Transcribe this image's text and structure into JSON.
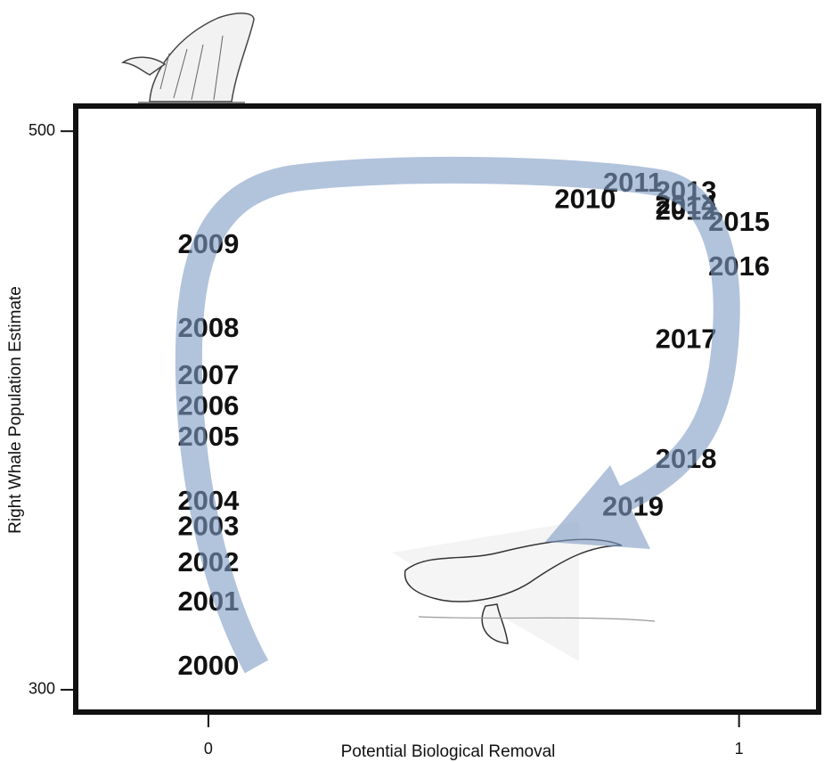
{
  "chart_data": {
    "type": "scatter",
    "x_label": "Potential Biological Removal",
    "y_label": "Right Whale Population Estimate",
    "labels": [
      "2000",
      "2001",
      "2002",
      "2003",
      "2004",
      "2005",
      "2006",
      "2007",
      "2008",
      "2009",
      "2010",
      "2011",
      "2012",
      "2013",
      "2014",
      "2015",
      "2016",
      "2017",
      "2018",
      "2019"
    ],
    "x": [
      0.0,
      0.0,
      0.0,
      0.0,
      0.0,
      0.0,
      0.0,
      0.0,
      0.0,
      0.0,
      0.71,
      0.8,
      0.9,
      0.9,
      0.9,
      1.0,
      1.0,
      0.9,
      0.9,
      0.8
    ],
    "y": [
      308,
      331,
      345,
      358,
      367,
      390,
      401,
      412,
      429,
      459,
      475,
      481,
      471,
      478,
      473,
      467,
      451,
      425,
      382,
      365
    ],
    "xlim": [
      -0.25,
      1.15
    ],
    "ylim": [
      292,
      509
    ],
    "xticks": [
      0,
      1
    ],
    "yticks": [
      300,
      500
    ]
  }
}
